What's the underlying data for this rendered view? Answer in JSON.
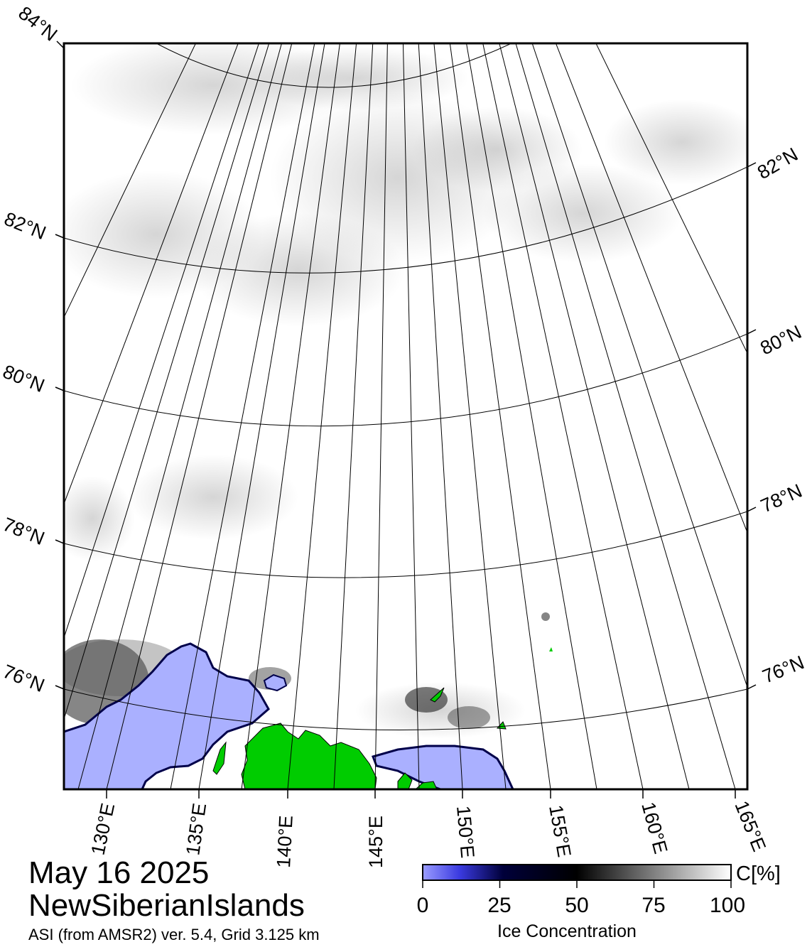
{
  "map": {
    "date": "May 16 2025",
    "region": "NewSiberianIslands",
    "source": "ASI (from AMSR2) ver. 5.4,  Grid 3.125 km",
    "latitude_labels": [
      "76°N",
      "78°N",
      "80°N",
      "82°N",
      "84°N"
    ],
    "longitude_labels": [
      "130°E",
      "135°E",
      "140°E",
      "145°E",
      "150°E",
      "155°E",
      "160°E",
      "165°E"
    ],
    "colors": {
      "land": "#00cc00",
      "open_water": "#aab0ff",
      "ice_high": "#ffffff",
      "ice_mid": "#000000",
      "ice_low": "#000066",
      "graticule": "#000000"
    }
  },
  "colorbar": {
    "title": "Ice Concentration",
    "unit": "C[%]",
    "ticks": [
      "0",
      "25",
      "50",
      "75",
      "100"
    ],
    "range": [
      0,
      100
    ]
  }
}
